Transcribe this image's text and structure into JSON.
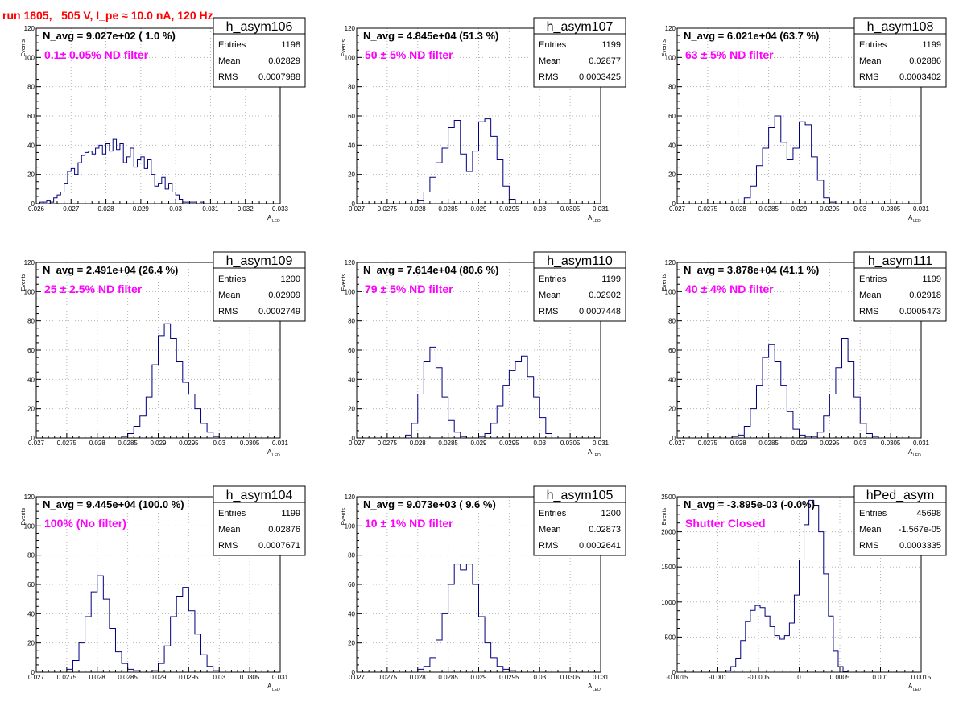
{
  "page_title": "run 1805,   505 V, I_pe ≈ 10.0 nA, 120 Hz",
  "colors": {
    "histogram": "#000080",
    "overlay_text": "#ff00ff",
    "title": "#ff0000",
    "grid": "#b4b4b4"
  },
  "chart_data": [
    {
      "type": "histogram",
      "name": "h_asym106",
      "navg": "N_avg = 9.027e+02 ( 1.0 %)",
      "filter": "0.1± 0.05% ND filter",
      "stats": {
        "entries": "1198",
        "mean": "0.02829",
        "rms": "0.0007988"
      },
      "xlabel": "A",
      "xlabel_sub": "LED",
      "ylabel": "Events",
      "xlim": [
        0.026,
        0.033
      ],
      "ylim": [
        0,
        120
      ],
      "xticks": [
        "0.026",
        "0.027",
        "0.028",
        "0.029",
        "0.03",
        "0.031",
        "0.032",
        "0.033"
      ],
      "xtick_values": [
        0.026,
        0.027,
        0.028,
        0.029,
        0.03,
        0.031,
        0.032,
        0.033
      ],
      "yticks": [
        "0",
        "20",
        "40",
        "60",
        "80",
        "100",
        "120"
      ],
      "yticks_values": [
        0,
        20,
        40,
        60,
        80,
        100,
        120
      ],
      "x": [
        0.02615,
        0.02625,
        0.02635,
        0.02645,
        0.02655,
        0.02665,
        0.02675,
        0.02685,
        0.02695,
        0.02705,
        0.02715,
        0.02725,
        0.02735,
        0.02745,
        0.02755,
        0.02765,
        0.02775,
        0.02785,
        0.02795,
        0.02805,
        0.02815,
        0.02825,
        0.02835,
        0.02845,
        0.02855,
        0.02865,
        0.02875,
        0.02885,
        0.02895,
        0.02905,
        0.02915,
        0.02925,
        0.02935,
        0.02945,
        0.02955,
        0.02965,
        0.02975,
        0.02985,
        0.02995,
        0.03005,
        0.03015,
        0.03025,
        0.03035,
        0.03045,
        0.03055,
        0.03065,
        0.03075
      ],
      "y": [
        1,
        1,
        2,
        1,
        4,
        6,
        8,
        14,
        22,
        24,
        20,
        28,
        33,
        35,
        36,
        34,
        38,
        40,
        34,
        41,
        36,
        44,
        37,
        41,
        28,
        32,
        38,
        25,
        30,
        32,
        24,
        30,
        20,
        12,
        14,
        18,
        10,
        14,
        8,
        6,
        3,
        1,
        1,
        1,
        1,
        0,
        1
      ]
    },
    {
      "type": "histogram",
      "name": "h_asym107",
      "navg": "N_avg = 4.845e+04 (51.3 %)",
      "filter": "50 ± 5% ND filter",
      "stats": {
        "entries": "1199",
        "mean": "0.02877",
        "rms": "0.0003425"
      },
      "xlabel": "A",
      "xlabel_sub": "LED",
      "ylabel": "Events",
      "xlim": [
        0.027,
        0.031
      ],
      "ylim": [
        0,
        120
      ],
      "xticks": [
        "0.027",
        "0.0275",
        "0.028",
        "0.0285",
        "0.029",
        "0.0295",
        "0.03",
        "0.0305",
        "0.031"
      ],
      "xtick_values": [
        0.027,
        0.0275,
        0.028,
        0.0285,
        0.029,
        0.0295,
        0.03,
        0.0305,
        0.031
      ],
      "yticks": [
        "0",
        "20",
        "40",
        "60",
        "80",
        "100",
        "120"
      ],
      "yticks_values": [
        0,
        20,
        40,
        60,
        80,
        100,
        120
      ],
      "x": [
        0.02805,
        0.02815,
        0.02825,
        0.02835,
        0.02845,
        0.02855,
        0.02865,
        0.02875,
        0.02885,
        0.02895,
        0.02905,
        0.02915,
        0.02925,
        0.02935,
        0.02945,
        0.02955
      ],
      "y": [
        2,
        8,
        18,
        28,
        38,
        52,
        57,
        34,
        22,
        36,
        56,
        58,
        46,
        30,
        12,
        3
      ]
    },
    {
      "type": "histogram",
      "name": "h_asym108",
      "navg": "N_avg = 6.021e+04 (63.7 %)",
      "filter": "63 ± 5% ND filter",
      "stats": {
        "entries": "1199",
        "mean": "0.02886",
        "rms": "0.0003402"
      },
      "xlabel": "A",
      "xlabel_sub": "LED",
      "ylabel": "Events",
      "xlim": [
        0.027,
        0.031
      ],
      "ylim": [
        0,
        120
      ],
      "xticks": [
        "0.027",
        "0.0275",
        "0.028",
        "0.0285",
        "0.029",
        "0.0295",
        "0.03",
        "0.0305",
        "0.031"
      ],
      "xtick_values": [
        0.027,
        0.0275,
        0.028,
        0.0285,
        0.029,
        0.0295,
        0.03,
        0.0305,
        0.031
      ],
      "yticks": [
        "0",
        "20",
        "40",
        "60",
        "80",
        "100",
        "120"
      ],
      "yticks_values": [
        0,
        20,
        40,
        60,
        80,
        100,
        120
      ],
      "x": [
        0.02815,
        0.02825,
        0.02835,
        0.02845,
        0.02855,
        0.02865,
        0.02875,
        0.02885,
        0.02895,
        0.02905,
        0.02915,
        0.02925,
        0.02935,
        0.02945,
        0.02955
      ],
      "y": [
        4,
        12,
        26,
        38,
        52,
        60,
        42,
        30,
        38,
        56,
        54,
        32,
        16,
        4,
        1
      ]
    },
    {
      "type": "histogram",
      "name": "h_asym109",
      "navg": "N_avg = 2.491e+04 (26.4 %)",
      "filter": "25 ± 2.5% ND filter",
      "stats": {
        "entries": "1200",
        "mean": "0.02909",
        "rms": "0.0002749"
      },
      "xlabel": "A",
      "xlabel_sub": "LED",
      "ylabel": "Events",
      "xlim": [
        0.027,
        0.031
      ],
      "ylim": [
        0,
        120
      ],
      "xticks": [
        "0.027",
        "0.0275",
        "0.028",
        "0.0285",
        "0.029",
        "0.0295",
        "0.03",
        "0.0305",
        "0.031"
      ],
      "xtick_values": [
        0.027,
        0.0275,
        0.028,
        0.0285,
        0.029,
        0.0295,
        0.03,
        0.0305,
        0.031
      ],
      "yticks": [
        "0",
        "20",
        "40",
        "60",
        "80",
        "100",
        "120"
      ],
      "yticks_values": [
        0,
        20,
        40,
        60,
        80,
        100,
        120
      ],
      "x": [
        0.02845,
        0.02855,
        0.02865,
        0.02875,
        0.02885,
        0.02895,
        0.02905,
        0.02915,
        0.02925,
        0.02935,
        0.02945,
        0.02955,
        0.02965,
        0.02975,
        0.02985,
        0.02995
      ],
      "y": [
        1,
        3,
        8,
        15,
        28,
        50,
        70,
        78,
        68,
        52,
        38,
        30,
        20,
        10,
        4,
        1
      ]
    },
    {
      "type": "histogram",
      "name": "h_asym110",
      "navg": "N_avg = 7.614e+04 (80.6 %)",
      "filter": "79 ± 5% ND filter",
      "stats": {
        "entries": "1199",
        "mean": "0.02902",
        "rms": "0.0007448"
      },
      "xlabel": "A",
      "xlabel_sub": "LED",
      "ylabel": "Events",
      "xlim": [
        0.027,
        0.031
      ],
      "ylim": [
        0,
        120
      ],
      "xticks": [
        "0.027",
        "0.0275",
        "0.028",
        "0.0285",
        "0.029",
        "0.0295",
        "0.03",
        "0.0305",
        "0.031"
      ],
      "xtick_values": [
        0.027,
        0.0275,
        0.028,
        0.0285,
        0.029,
        0.0295,
        0.03,
        0.0305,
        0.031
      ],
      "yticks": [
        "0",
        "20",
        "40",
        "60",
        "80",
        "100",
        "120"
      ],
      "yticks_values": [
        0,
        20,
        40,
        60,
        80,
        100,
        120
      ],
      "x": [
        0.02785,
        0.02795,
        0.02805,
        0.02815,
        0.02825,
        0.02835,
        0.02845,
        0.02855,
        0.02865,
        0.02875,
        0.02885,
        0.02895,
        0.02905,
        0.02915,
        0.02925,
        0.02935,
        0.02945,
        0.02955,
        0.02965,
        0.02975,
        0.02985,
        0.02995,
        0.03005,
        0.03015
      ],
      "y": [
        2,
        10,
        30,
        52,
        62,
        48,
        28,
        12,
        4,
        1,
        0,
        0,
        1,
        3,
        10,
        22,
        36,
        46,
        52,
        56,
        42,
        28,
        14,
        3
      ]
    },
    {
      "type": "histogram",
      "name": "h_asym111",
      "navg": "N_avg = 3.878e+04 (41.1 %)",
      "filter": "40 ± 4% ND filter",
      "stats": {
        "entries": "1199",
        "mean": "0.02918",
        "rms": "0.0005473"
      },
      "xlabel": "A",
      "xlabel_sub": "LED",
      "ylabel": "Events",
      "xlim": [
        0.027,
        0.031
      ],
      "ylim": [
        0,
        120
      ],
      "xticks": [
        "0.027",
        "0.0275",
        "0.028",
        "0.0285",
        "0.029",
        "0.0295",
        "0.03",
        "0.0305",
        "0.031"
      ],
      "xtick_values": [
        0.027,
        0.0275,
        0.028,
        0.0285,
        0.029,
        0.0295,
        0.03,
        0.0305,
        0.031
      ],
      "yticks": [
        "0",
        "20",
        "40",
        "60",
        "80",
        "100",
        "120"
      ],
      "yticks_values": [
        0,
        20,
        40,
        60,
        80,
        100,
        120
      ],
      "x": [
        0.02795,
        0.02805,
        0.02815,
        0.02825,
        0.02835,
        0.02845,
        0.02855,
        0.02865,
        0.02875,
        0.02885,
        0.02895,
        0.02905,
        0.02915,
        0.02925,
        0.02935,
        0.02945,
        0.02955,
        0.02965,
        0.02975,
        0.02985,
        0.02995,
        0.03005,
        0.03015,
        0.03025
      ],
      "y": [
        1,
        2,
        8,
        20,
        36,
        55,
        64,
        52,
        36,
        18,
        6,
        2,
        1,
        1,
        4,
        15,
        30,
        48,
        68,
        52,
        28,
        10,
        3,
        1
      ]
    },
    {
      "type": "histogram",
      "name": "h_asym104",
      "navg": "N_avg = 9.445e+04 (100.0 %)",
      "filter": "100% (No filter)",
      "stats": {
        "entries": "1199",
        "mean": "0.02876",
        "rms": "0.0007671"
      },
      "xlabel": "A",
      "xlabel_sub": "LED",
      "ylabel": "Events",
      "xlim": [
        0.027,
        0.031
      ],
      "ylim": [
        0,
        120
      ],
      "xticks": [
        "0.027",
        "0.0275",
        "0.028",
        "0.0285",
        "0.029",
        "0.0295",
        "0.03",
        "0.0305",
        "0.031"
      ],
      "xtick_values": [
        0.027,
        0.0275,
        0.028,
        0.0285,
        0.029,
        0.0295,
        0.03,
        0.0305,
        0.031
      ],
      "yticks": [
        "0",
        "20",
        "40",
        "60",
        "80",
        "100",
        "120"
      ],
      "yticks_values": [
        0,
        20,
        40,
        60,
        80,
        100,
        120
      ],
      "x": [
        0.02755,
        0.02765,
        0.02775,
        0.02785,
        0.02795,
        0.02805,
        0.02815,
        0.02825,
        0.02835,
        0.02845,
        0.02855,
        0.02865,
        0.02875,
        0.02885,
        0.02895,
        0.02905,
        0.02915,
        0.02925,
        0.02935,
        0.02945,
        0.02955,
        0.02965,
        0.02975,
        0.02985,
        0.02995
      ],
      "y": [
        2,
        8,
        20,
        38,
        55,
        66,
        50,
        30,
        14,
        6,
        2,
        1,
        0,
        0,
        1,
        6,
        18,
        38,
        52,
        58,
        42,
        26,
        12,
        4,
        1
      ]
    },
    {
      "type": "histogram",
      "name": "h_asym105",
      "navg": "N_avg = 9.073e+03 ( 9.6 %)",
      "filter": "10 ± 1% ND filter",
      "stats": {
        "entries": "1200",
        "mean": "0.02873",
        "rms": "0.0002641"
      },
      "xlabel": "A",
      "xlabel_sub": "LED",
      "ylabel": "Events",
      "xlim": [
        0.027,
        0.031
      ],
      "ylim": [
        0,
        120
      ],
      "xticks": [
        "0.027",
        "0.0275",
        "0.028",
        "0.0285",
        "0.029",
        "0.0295",
        "0.03",
        "0.0305",
        "0.031"
      ],
      "xtick_values": [
        0.027,
        0.0275,
        0.028,
        0.0285,
        0.029,
        0.0295,
        0.03,
        0.0305,
        0.031
      ],
      "yticks": [
        "0",
        "20",
        "40",
        "60",
        "80",
        "100",
        "120"
      ],
      "yticks_values": [
        0,
        20,
        40,
        60,
        80,
        100,
        120
      ],
      "x": [
        0.02805,
        0.02815,
        0.02825,
        0.02835,
        0.02845,
        0.02855,
        0.02865,
        0.02875,
        0.02885,
        0.02895,
        0.02905,
        0.02915,
        0.02925,
        0.02935,
        0.02945,
        0.02955
      ],
      "y": [
        2,
        4,
        10,
        22,
        40,
        60,
        74,
        70,
        74,
        60,
        38,
        20,
        10,
        4,
        2,
        1
      ]
    },
    {
      "type": "histogram",
      "name": "hPed_asym",
      "navg": "N_avg = -3.895e-03 (-0.0%)",
      "filter": "Shutter Closed",
      "stats": {
        "entries": "45698",
        "mean": "-1.567e-05",
        "rms": "0.0003335"
      },
      "xlabel": "A",
      "xlabel_sub": "LED",
      "ylabel": "Events",
      "xlim": [
        -0.0015,
        0.0015
      ],
      "ylim": [
        0,
        2500
      ],
      "xticks": [
        "-0.0015",
        "-0.001",
        "-0.0005",
        "0",
        "0.0005",
        "0.001",
        "0.0015"
      ],
      "xtick_values": [
        -0.0015,
        -0.001,
        -0.0005,
        0,
        0.0005,
        0.001,
        0.0015
      ],
      "yticks": [
        "0",
        "500",
        "1000",
        "1500",
        "2000",
        "2500"
      ],
      "yticks_values": [
        0,
        500,
        1000,
        1500,
        2000,
        2500
      ],
      "x": [
        -0.00087,
        -0.00081,
        -0.00075,
        -0.00069,
        -0.00063,
        -0.00057,
        -0.00051,
        -0.00045,
        -0.00039,
        -0.00033,
        -0.00027,
        -0.00021,
        -0.00015,
        -9e-05,
        -3e-05,
        3e-05,
        9e-05,
        0.00015,
        0.00021,
        0.00027,
        0.00033,
        0.00039,
        0.00045,
        0.00051,
        0.00057
      ],
      "y": [
        20,
        80,
        200,
        450,
        720,
        880,
        950,
        920,
        800,
        650,
        520,
        470,
        520,
        700,
        1100,
        1600,
        2100,
        2450,
        2380,
        2000,
        1400,
        800,
        300,
        80,
        10
      ]
    }
  ]
}
